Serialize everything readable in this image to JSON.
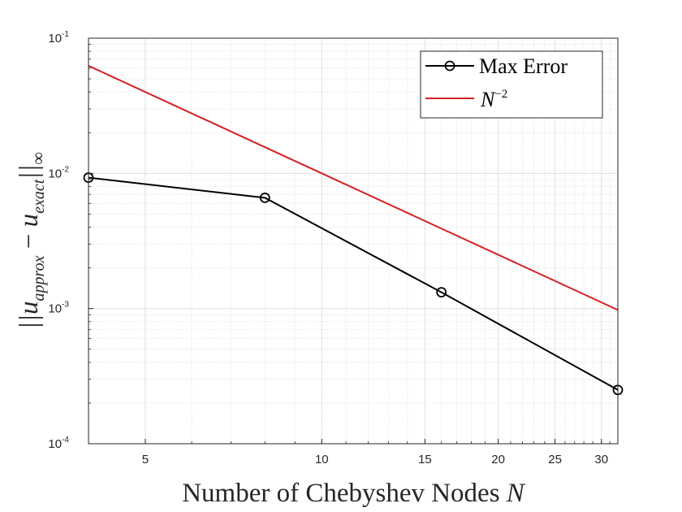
{
  "chart_data": {
    "type": "line",
    "xscale": "log",
    "yscale": "log",
    "xlim": [
      4,
      32
    ],
    "ylim": [
      0.0001,
      0.1
    ],
    "grid": true,
    "minor_grid": true,
    "legend_position": "top-right",
    "xlabel_text": "Number of Chebyshev Nodes ",
    "xlabel_var": "N",
    "ylabel_text": "||u_approx − u_exact||∞",
    "xticks": [
      {
        "value": 5,
        "label": "5"
      },
      {
        "value": 10,
        "label": "10"
      },
      {
        "value": 15,
        "label": "15"
      },
      {
        "value": 20,
        "label": "20"
      },
      {
        "value": 25,
        "label": "25"
      },
      {
        "value": 30,
        "label": "30"
      }
    ],
    "yticks": [
      {
        "value": 0.0001,
        "base": "10",
        "exp": "-4"
      },
      {
        "value": 0.001,
        "base": "10",
        "exp": "-3"
      },
      {
        "value": 0.01,
        "base": "10",
        "exp": "-2"
      },
      {
        "value": 0.1,
        "base": "10",
        "exp": "-1"
      }
    ],
    "series": [
      {
        "name": "Max Error",
        "color": "#000000",
        "marker": "circle",
        "x": [
          4,
          8,
          16,
          32
        ],
        "y": [
          0.0093,
          0.0066,
          0.00132,
          0.00025
        ]
      },
      {
        "name": "N^-2",
        "label_base": "N",
        "label_exp": "−2",
        "color": "#d62020",
        "marker": "none",
        "x": [
          4,
          32
        ],
        "y": [
          0.0625,
          0.0009765625
        ]
      }
    ]
  }
}
